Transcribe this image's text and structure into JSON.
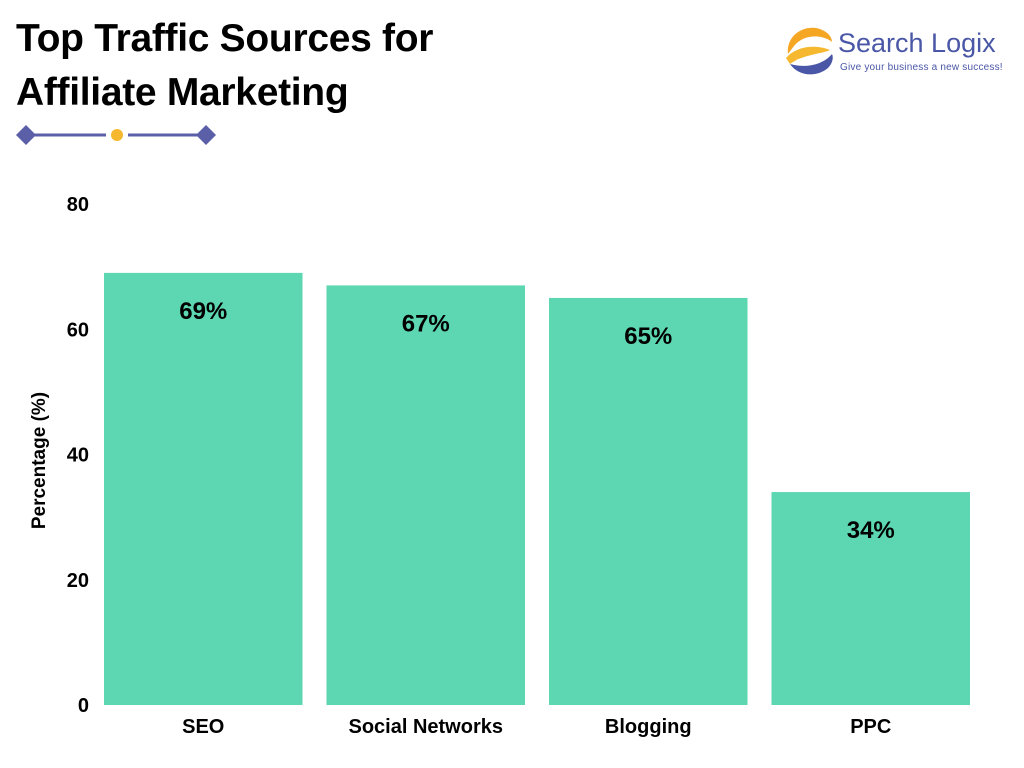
{
  "header": {
    "title_line1": "Top Traffic Sources for",
    "title_line2": "Affiliate Marketing"
  },
  "logo": {
    "name": "Search Logix",
    "tagline": "Give your business a new success!"
  },
  "colors": {
    "bar": "#5dd6b2",
    "accent": "#5b5fa8",
    "dot": "#f5b82e",
    "logo_text": "#4a57a6"
  },
  "chart_data": {
    "type": "bar",
    "categories": [
      "SEO",
      "Social Networks",
      "Blogging",
      "PPC"
    ],
    "values": [
      69,
      67,
      65,
      34
    ],
    "data_labels": [
      "69%",
      "67%",
      "65%",
      "34%"
    ],
    "ylabel": "Percentage (%)",
    "ylim": [
      0,
      80
    ],
    "yticks": [
      0,
      20,
      40,
      60,
      80
    ],
    "grid": false,
    "legend": "none"
  }
}
